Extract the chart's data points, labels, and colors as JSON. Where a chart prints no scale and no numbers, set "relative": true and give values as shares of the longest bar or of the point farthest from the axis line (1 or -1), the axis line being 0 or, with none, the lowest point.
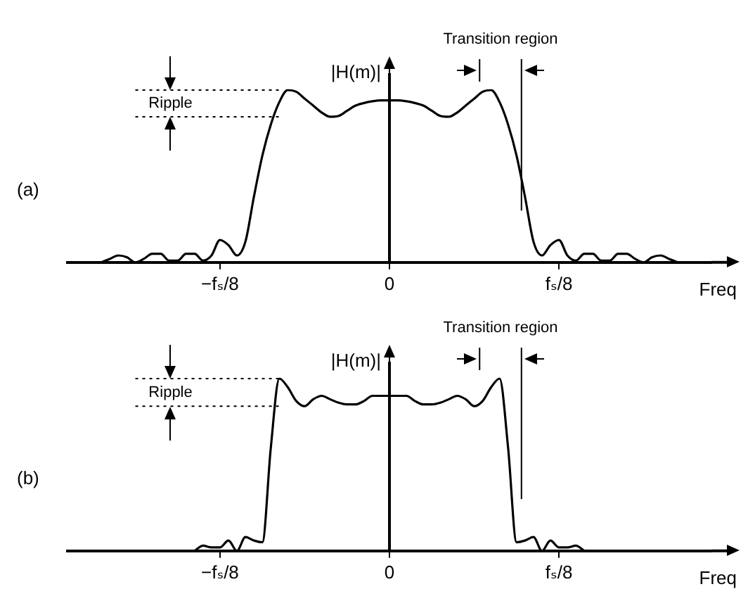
{
  "chart_data": [
    {
      "type": "line",
      "title": "(a)",
      "xlabel": "Freq",
      "ylabel": "|H(m)|",
      "relative": true,
      "color": "#000000",
      "marker": "none",
      "line_style": "solid",
      "grid": false,
      "legend": false,
      "annotations": [
        "Ripple",
        "Transition region"
      ],
      "categories": [
        null,
        null,
        null,
        null,
        null,
        null,
        null,
        null,
        null,
        null,
        null,
        null,
        null,
        null,
        null,
        null,
        null,
        null,
        "−fₛ/8",
        null,
        null,
        null,
        null,
        null,
        null,
        null,
        null,
        null,
        null,
        null,
        null,
        null,
        null,
        null,
        null,
        null,
        null,
        null,
        "0",
        null,
        null,
        null,
        null,
        null,
        null,
        null,
        null,
        null,
        null,
        null,
        null,
        null,
        null,
        null,
        null,
        null,
        null,
        null,
        "fₛ/8",
        null,
        null,
        null,
        null,
        null,
        null,
        null,
        null,
        null,
        null,
        null,
        null,
        null,
        null,
        null,
        null,
        null,
        null
      ],
      "ref_lines": [
        {
          "axis": "y",
          "value": 1,
          "line_style": "dotted"
        },
        {
          "axis": "y",
          "value": 0.845,
          "line_style": "dotted"
        }
      ],
      "values": [
        null,
        null,
        null,
        null,
        0,
        0.02,
        0.04,
        0.03,
        0,
        0.02,
        0.05,
        0.05,
        0.01,
        0.01,
        0.05,
        0.05,
        0.01,
        0.04,
        0.13,
        0.1,
        0.04,
        0.12,
        0.38,
        0.62,
        0.8,
        0.93,
        1,
        0.99,
        0.95,
        0.91,
        0.87,
        0.845,
        0.85,
        0.88,
        0.91,
        0.925,
        0.935,
        0.94,
        0.94,
        0.94,
        0.935,
        0.925,
        0.91,
        0.88,
        0.85,
        0.845,
        0.87,
        0.91,
        0.95,
        0.99,
        1,
        0.93,
        0.8,
        0.62,
        0.38,
        0.12,
        0.04,
        0.1,
        0.13,
        0.04,
        0.01,
        0.05,
        0.05,
        0.01,
        0.01,
        0.05,
        0.05,
        0.02,
        0,
        0.03,
        0.04,
        0.02,
        0,
        null,
        null,
        null,
        null
      ]
    },
    {
      "type": "line",
      "title": "(b)",
      "xlabel": "Freq",
      "ylabel": "|H(m)|",
      "relative": true,
      "color": "#000000",
      "marker": "none",
      "line_style": "solid",
      "grid": false,
      "legend": false,
      "annotations": [
        "Ripple",
        "Transition region"
      ],
      "categories": [
        null,
        null,
        null,
        null,
        null,
        null,
        null,
        null,
        null,
        null,
        null,
        null,
        null,
        null,
        null,
        null,
        null,
        null,
        "−fₛ/8",
        null,
        null,
        null,
        null,
        null,
        null,
        null,
        null,
        null,
        null,
        null,
        null,
        null,
        null,
        null,
        null,
        null,
        null,
        null,
        "0",
        null,
        null,
        null,
        null,
        null,
        null,
        null,
        null,
        null,
        null,
        null,
        null,
        null,
        null,
        null,
        null,
        null,
        null,
        null,
        "fₛ/8",
        null,
        null,
        null,
        null,
        null,
        null,
        null,
        null,
        null,
        null,
        null,
        null,
        null,
        null,
        null,
        null,
        null,
        null
      ],
      "ref_lines": [
        {
          "axis": "y",
          "value": 1,
          "line_style": "dotted"
        },
        {
          "axis": "y",
          "value": 0.84,
          "line_style": "dotted"
        }
      ],
      "values": [
        null,
        null,
        null,
        null,
        null,
        null,
        null,
        null,
        null,
        null,
        null,
        null,
        null,
        null,
        null,
        0,
        0.03,
        0.02,
        0.02,
        0.06,
        0,
        0.08,
        0.06,
        0.05,
        0.6,
        1,
        0.95,
        0.87,
        0.84,
        0.88,
        0.9,
        0.88,
        0.86,
        0.85,
        0.85,
        0.87,
        0.9,
        0.9,
        0.9,
        0.9,
        0.9,
        0.87,
        0.85,
        0.85,
        0.86,
        0.88,
        0.9,
        0.88,
        0.84,
        0.87,
        0.95,
        1,
        0.6,
        0.05,
        0.06,
        0.08,
        0,
        0.06,
        0.02,
        0.02,
        0.03,
        0,
        null,
        null,
        null,
        null,
        null,
        null,
        null,
        null,
        null,
        null,
        null,
        null,
        null,
        null,
        null
      ]
    }
  ]
}
